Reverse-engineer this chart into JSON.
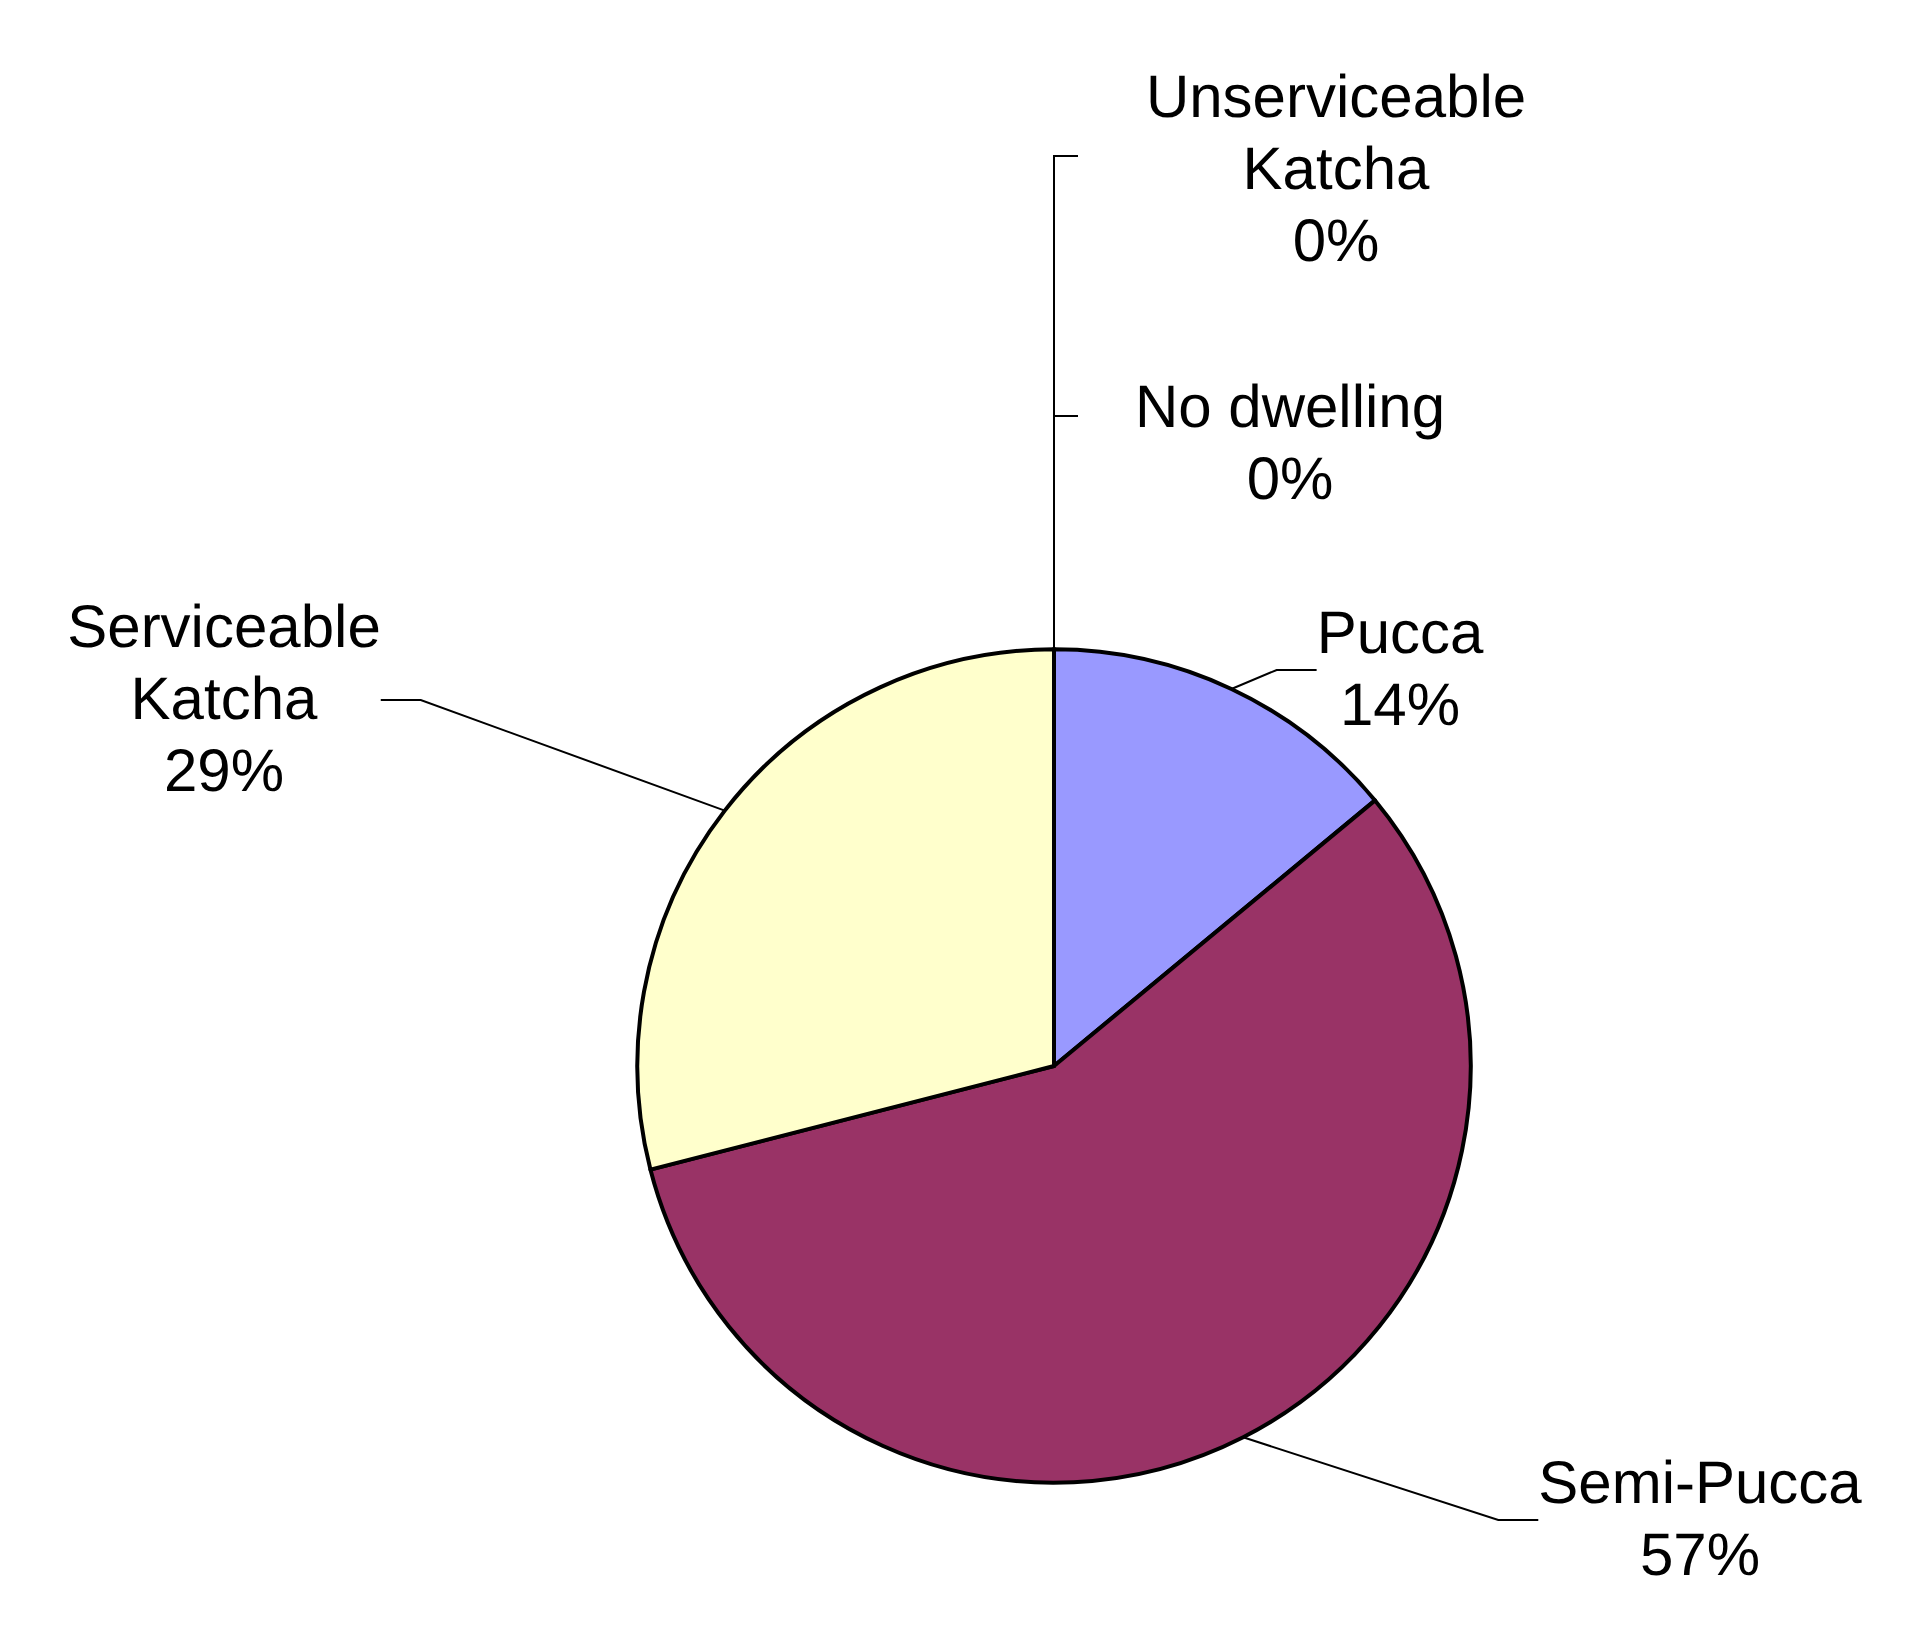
{
  "chart_data": {
    "type": "pie",
    "categories": [
      "Pucca",
      "Semi-Pucca",
      "Serviceable Katcha",
      "Unserviceable Katcha",
      "No dwelling"
    ],
    "values": [
      14,
      57,
      29,
      0,
      0
    ],
    "colors": [
      "#9999ff",
      "#993366",
      "#ffffcc",
      "#ccffff",
      "#660066"
    ],
    "value_labels": [
      "14%",
      "57%",
      "29%",
      "0%",
      "0%"
    ],
    "legend": false
  }
}
